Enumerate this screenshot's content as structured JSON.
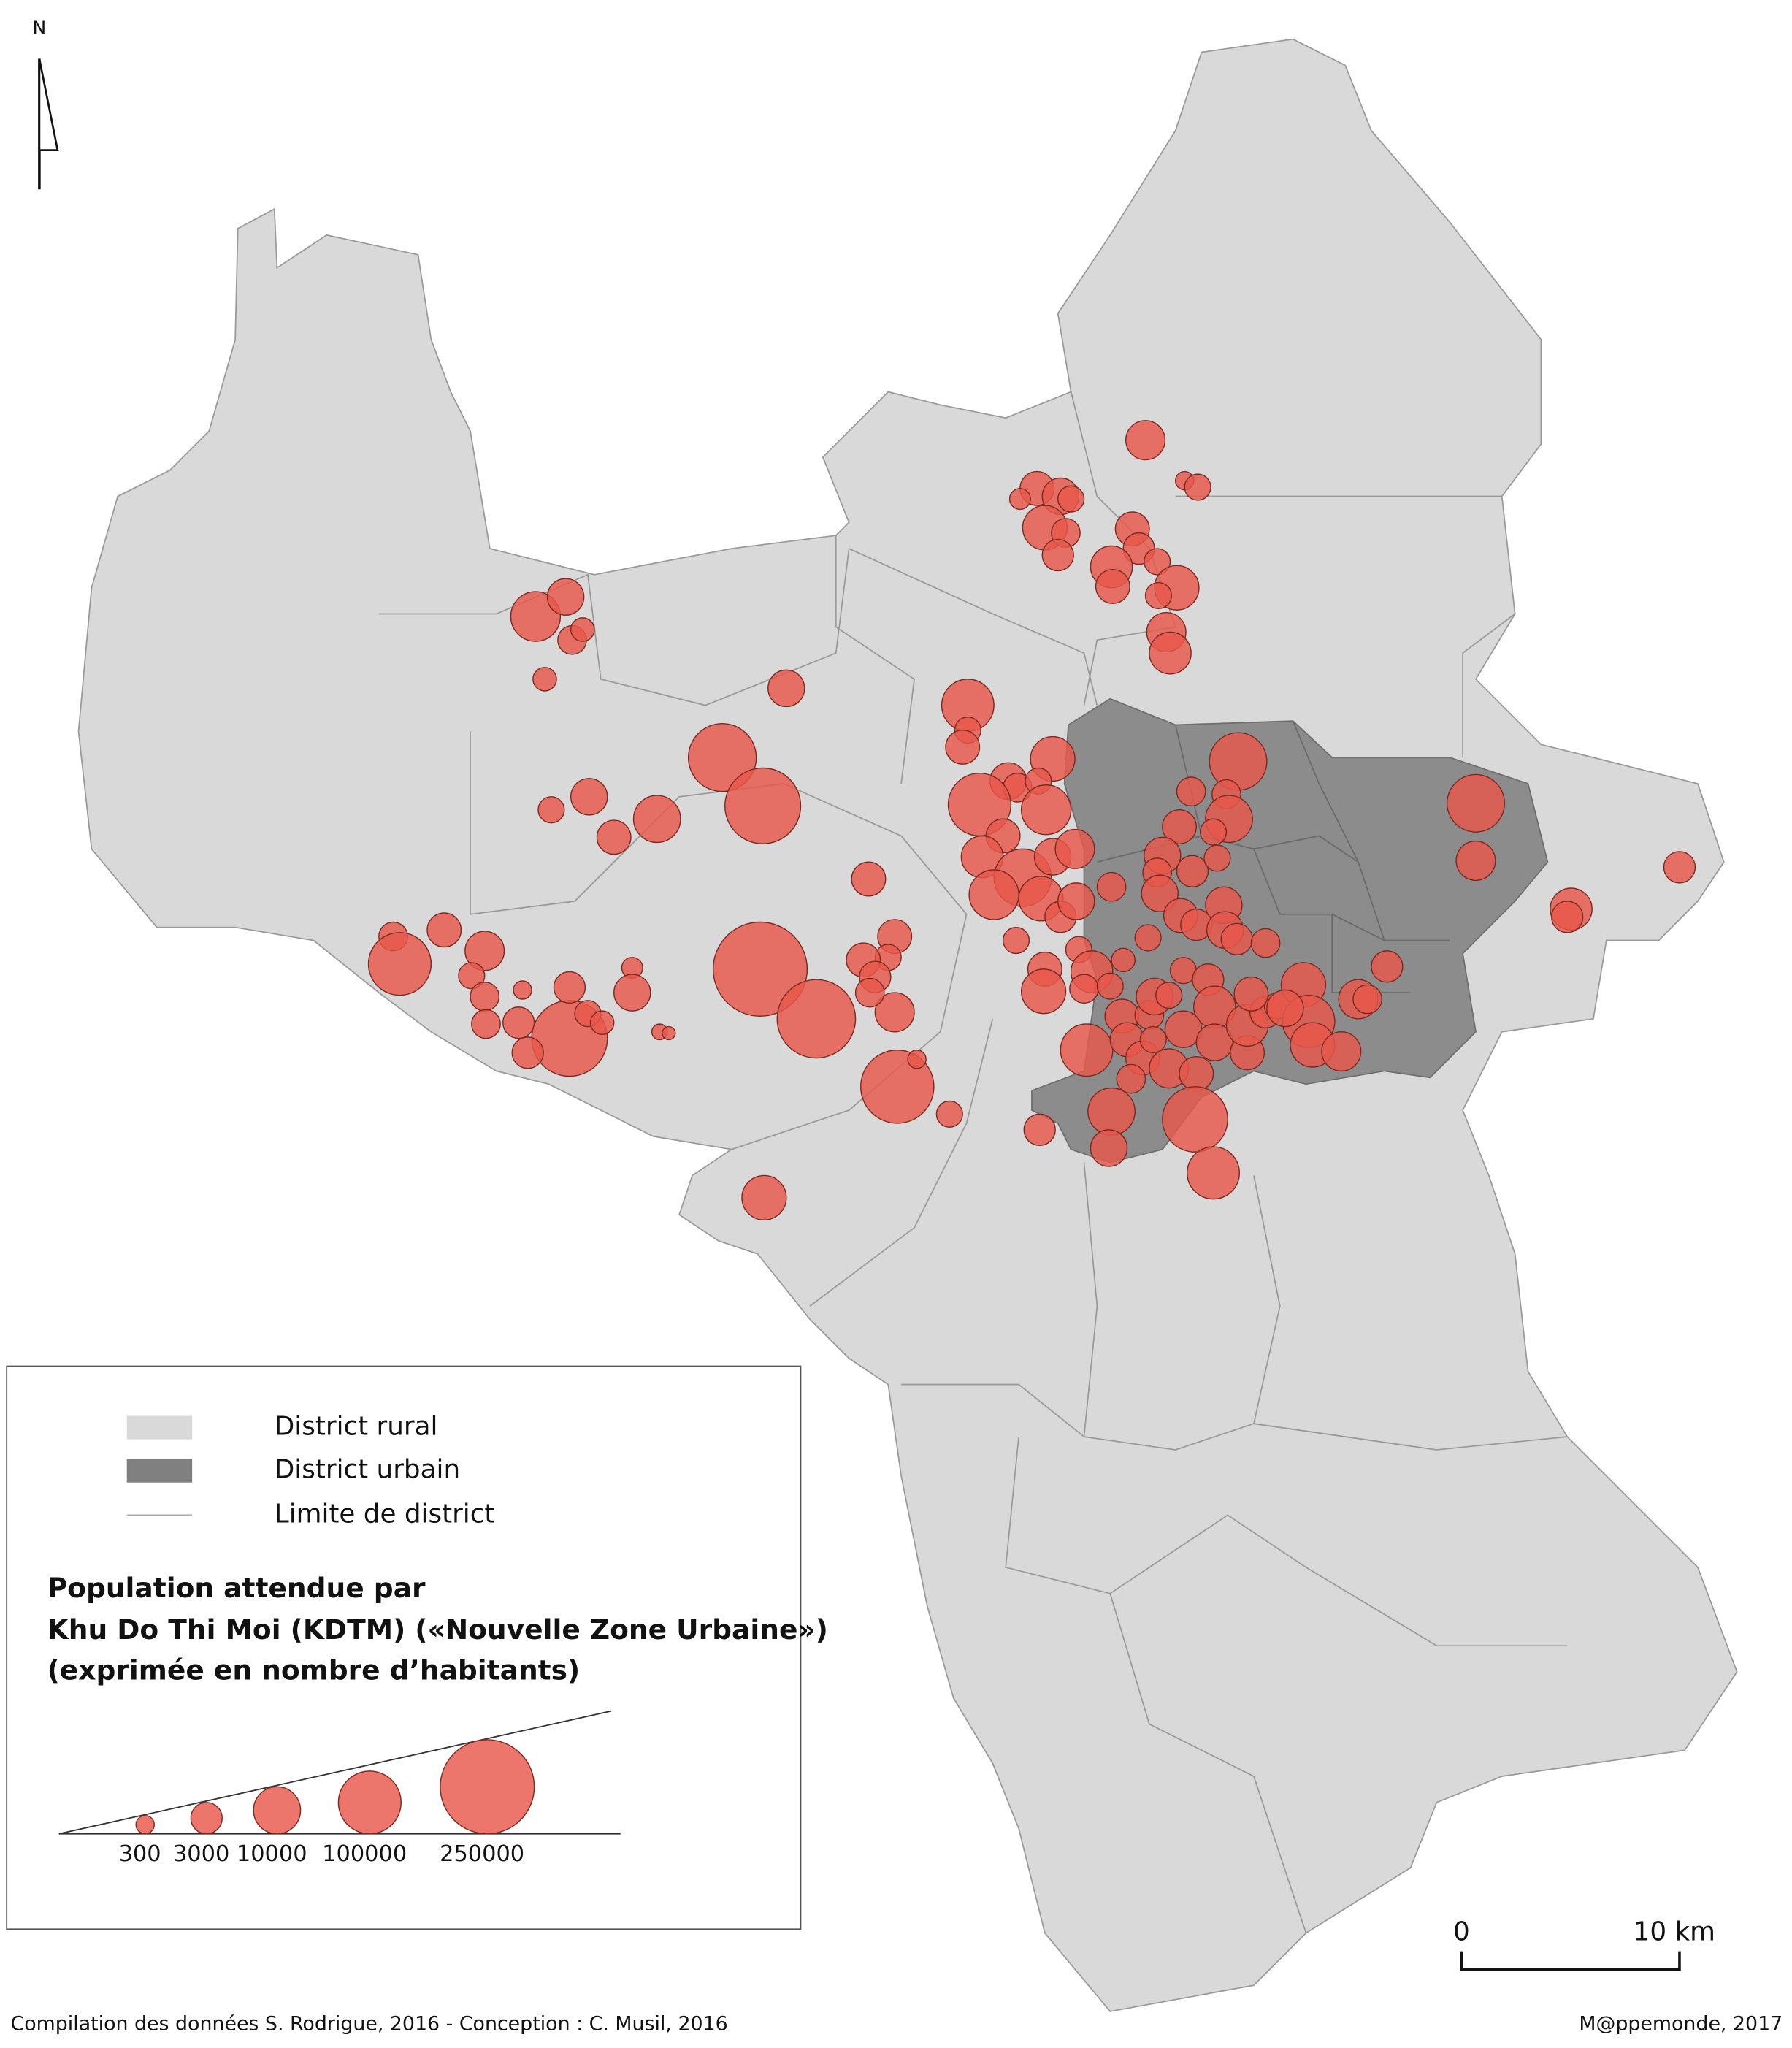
{
  "north_label": "N",
  "legend": {
    "items": [
      "District rural",
      "District urbain",
      "Limite de district"
    ],
    "title": [
      "Population attendue par",
      "Khu Do Thi Moi (KDTM) («Nouvelle Zone Urbaine»)",
      "(exprimée en nombre d’habitants)"
    ],
    "sizes": [
      300,
      3000,
      10000,
      100000,
      250000
    ]
  },
  "scale": {
    "start": 0,
    "end_label": "10 km"
  },
  "credits": {
    "left": "Compilation des données S. Rodrigue, 2016 - Conception : C. Musil, 2016",
    "right": "M@ppemonde, 2017"
  }
}
